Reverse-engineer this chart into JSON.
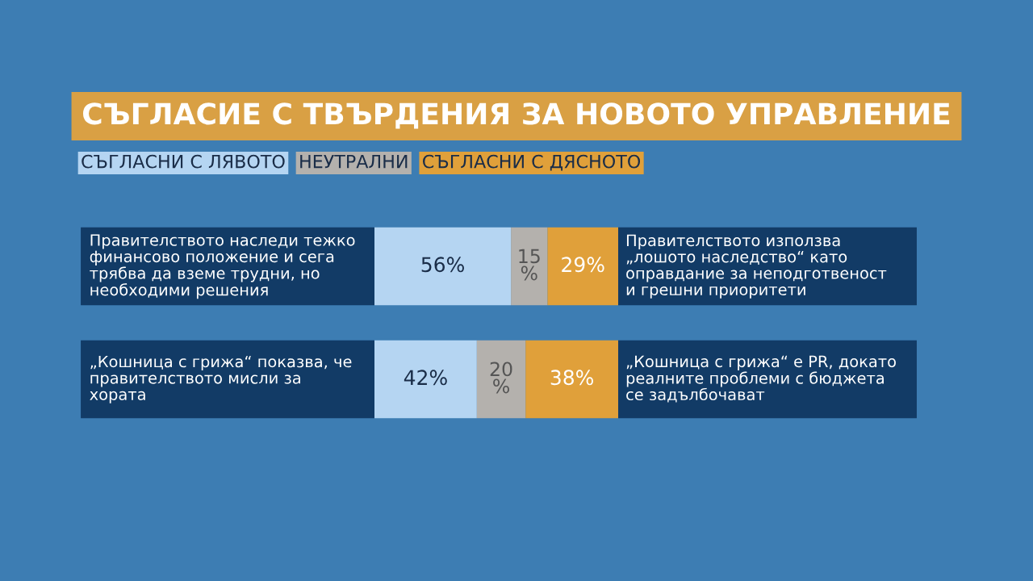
{
  "chart_data": {
    "type": "bar",
    "orientation": "horizontal",
    "stacked": true,
    "title": "СЪГЛАСИЕ С ТВЪРДЕНИЯ ЗА НОВОТО УПРАВЛЕНИЕ",
    "categories": [
      "Правителството наследи тежко\nфинансово положение и сега\nтрябва да вземе трудни, но\nнеобходими решения",
      "„Кошница с грижа“ показва, че\nправителството мисли за\nхората"
    ],
    "y2_categories": [
      "Правителството използва\n„лошото наследство“ като\nоправдание за неподготвеност\nи грешни приоритети",
      "„Кошница с грижа“ е PR, докато\nреалните проблеми с бюджета\nсе задълбочават"
    ],
    "series": [
      {
        "name": "СЪГЛАСНИ С ЛЯВОТО",
        "color": "#b5d5f2",
        "values": [
          56,
          42
        ],
        "value_labels": [
          "56%",
          "42%"
        ]
      },
      {
        "name": "НЕУТРАЛНИ",
        "color": "#b4b1ad",
        "values": [
          15,
          20
        ],
        "value_labels": [
          "15\n%",
          "20\n%"
        ]
      },
      {
        "name": "СЪГЛАСНИ С ДЯСНОТО",
        "color": "#e0a03a",
        "values": [
          29,
          38
        ],
        "value_labels": [
          "29%",
          "38%"
        ]
      }
    ],
    "legend": "top left"
  }
}
